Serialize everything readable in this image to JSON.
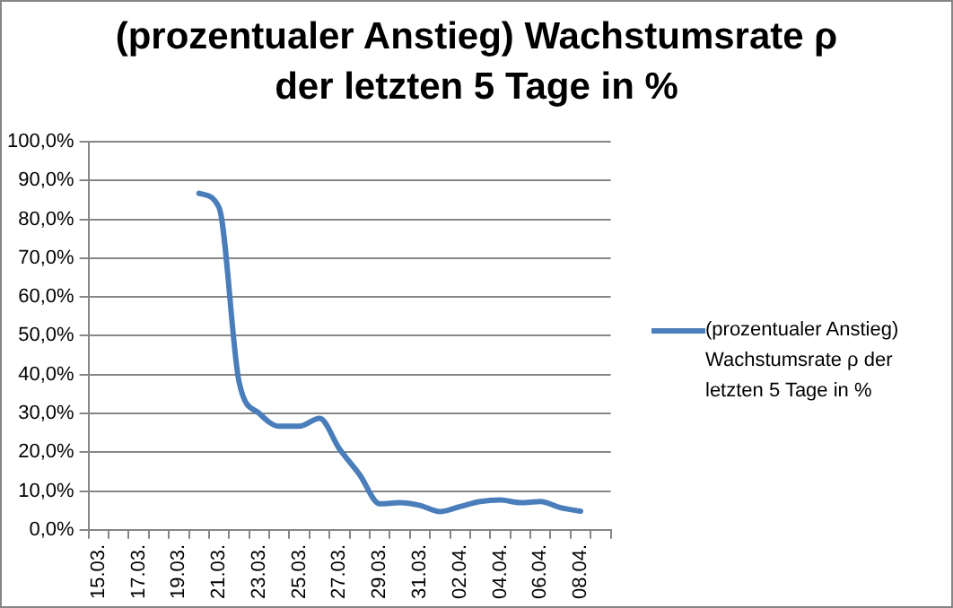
{
  "chart_data": {
    "type": "line",
    "title": "(prozentualer Anstieg) Wachstumsrate ρ der letzten 5 Tage in %",
    "categories": [
      "15.03.",
      null,
      "17.03.",
      null,
      "19.03.",
      null,
      "21.03.",
      null,
      "23.03.",
      null,
      "25.03.",
      null,
      "27.03.",
      null,
      "29.03.",
      null,
      "31.03.",
      null,
      "02.04.",
      null,
      "04.04.",
      null,
      "06.04.",
      null,
      "08.04.",
      null
    ],
    "series": [
      {
        "name": "(prozentualer Anstieg) Wachstumsrate ρ der letzten  5 Tage  in %",
        "color": "#4a7ebb",
        "values": [
          null,
          null,
          null,
          null,
          null,
          86.7,
          83,
          38,
          30,
          26.7,
          26.7,
          28.7,
          20.8,
          14.2,
          6.7,
          7,
          6.3,
          4.7,
          6,
          7.3,
          7.7,
          7,
          7.3,
          5.7,
          4.8,
          null
        ]
      }
    ],
    "ylim": [
      0,
      100
    ],
    "yticks": [
      {
        "value": 0,
        "label": "0,0%"
      },
      {
        "value": 10,
        "label": "10,0%"
      },
      {
        "value": 20,
        "label": "20,0%"
      },
      {
        "value": 30,
        "label": "30,0%"
      },
      {
        "value": 40,
        "label": "40,0%"
      },
      {
        "value": 50,
        "label": "50,0%"
      },
      {
        "value": 60,
        "label": "60,0%"
      },
      {
        "value": 70,
        "label": "70,0%"
      },
      {
        "value": 80,
        "label": "80,0%"
      },
      {
        "value": 90,
        "label": "90,0%"
      },
      {
        "value": 100,
        "label": "100,0%"
      }
    ],
    "grid": "y",
    "legend": "right",
    "marker": "none",
    "line_style": "solid"
  }
}
